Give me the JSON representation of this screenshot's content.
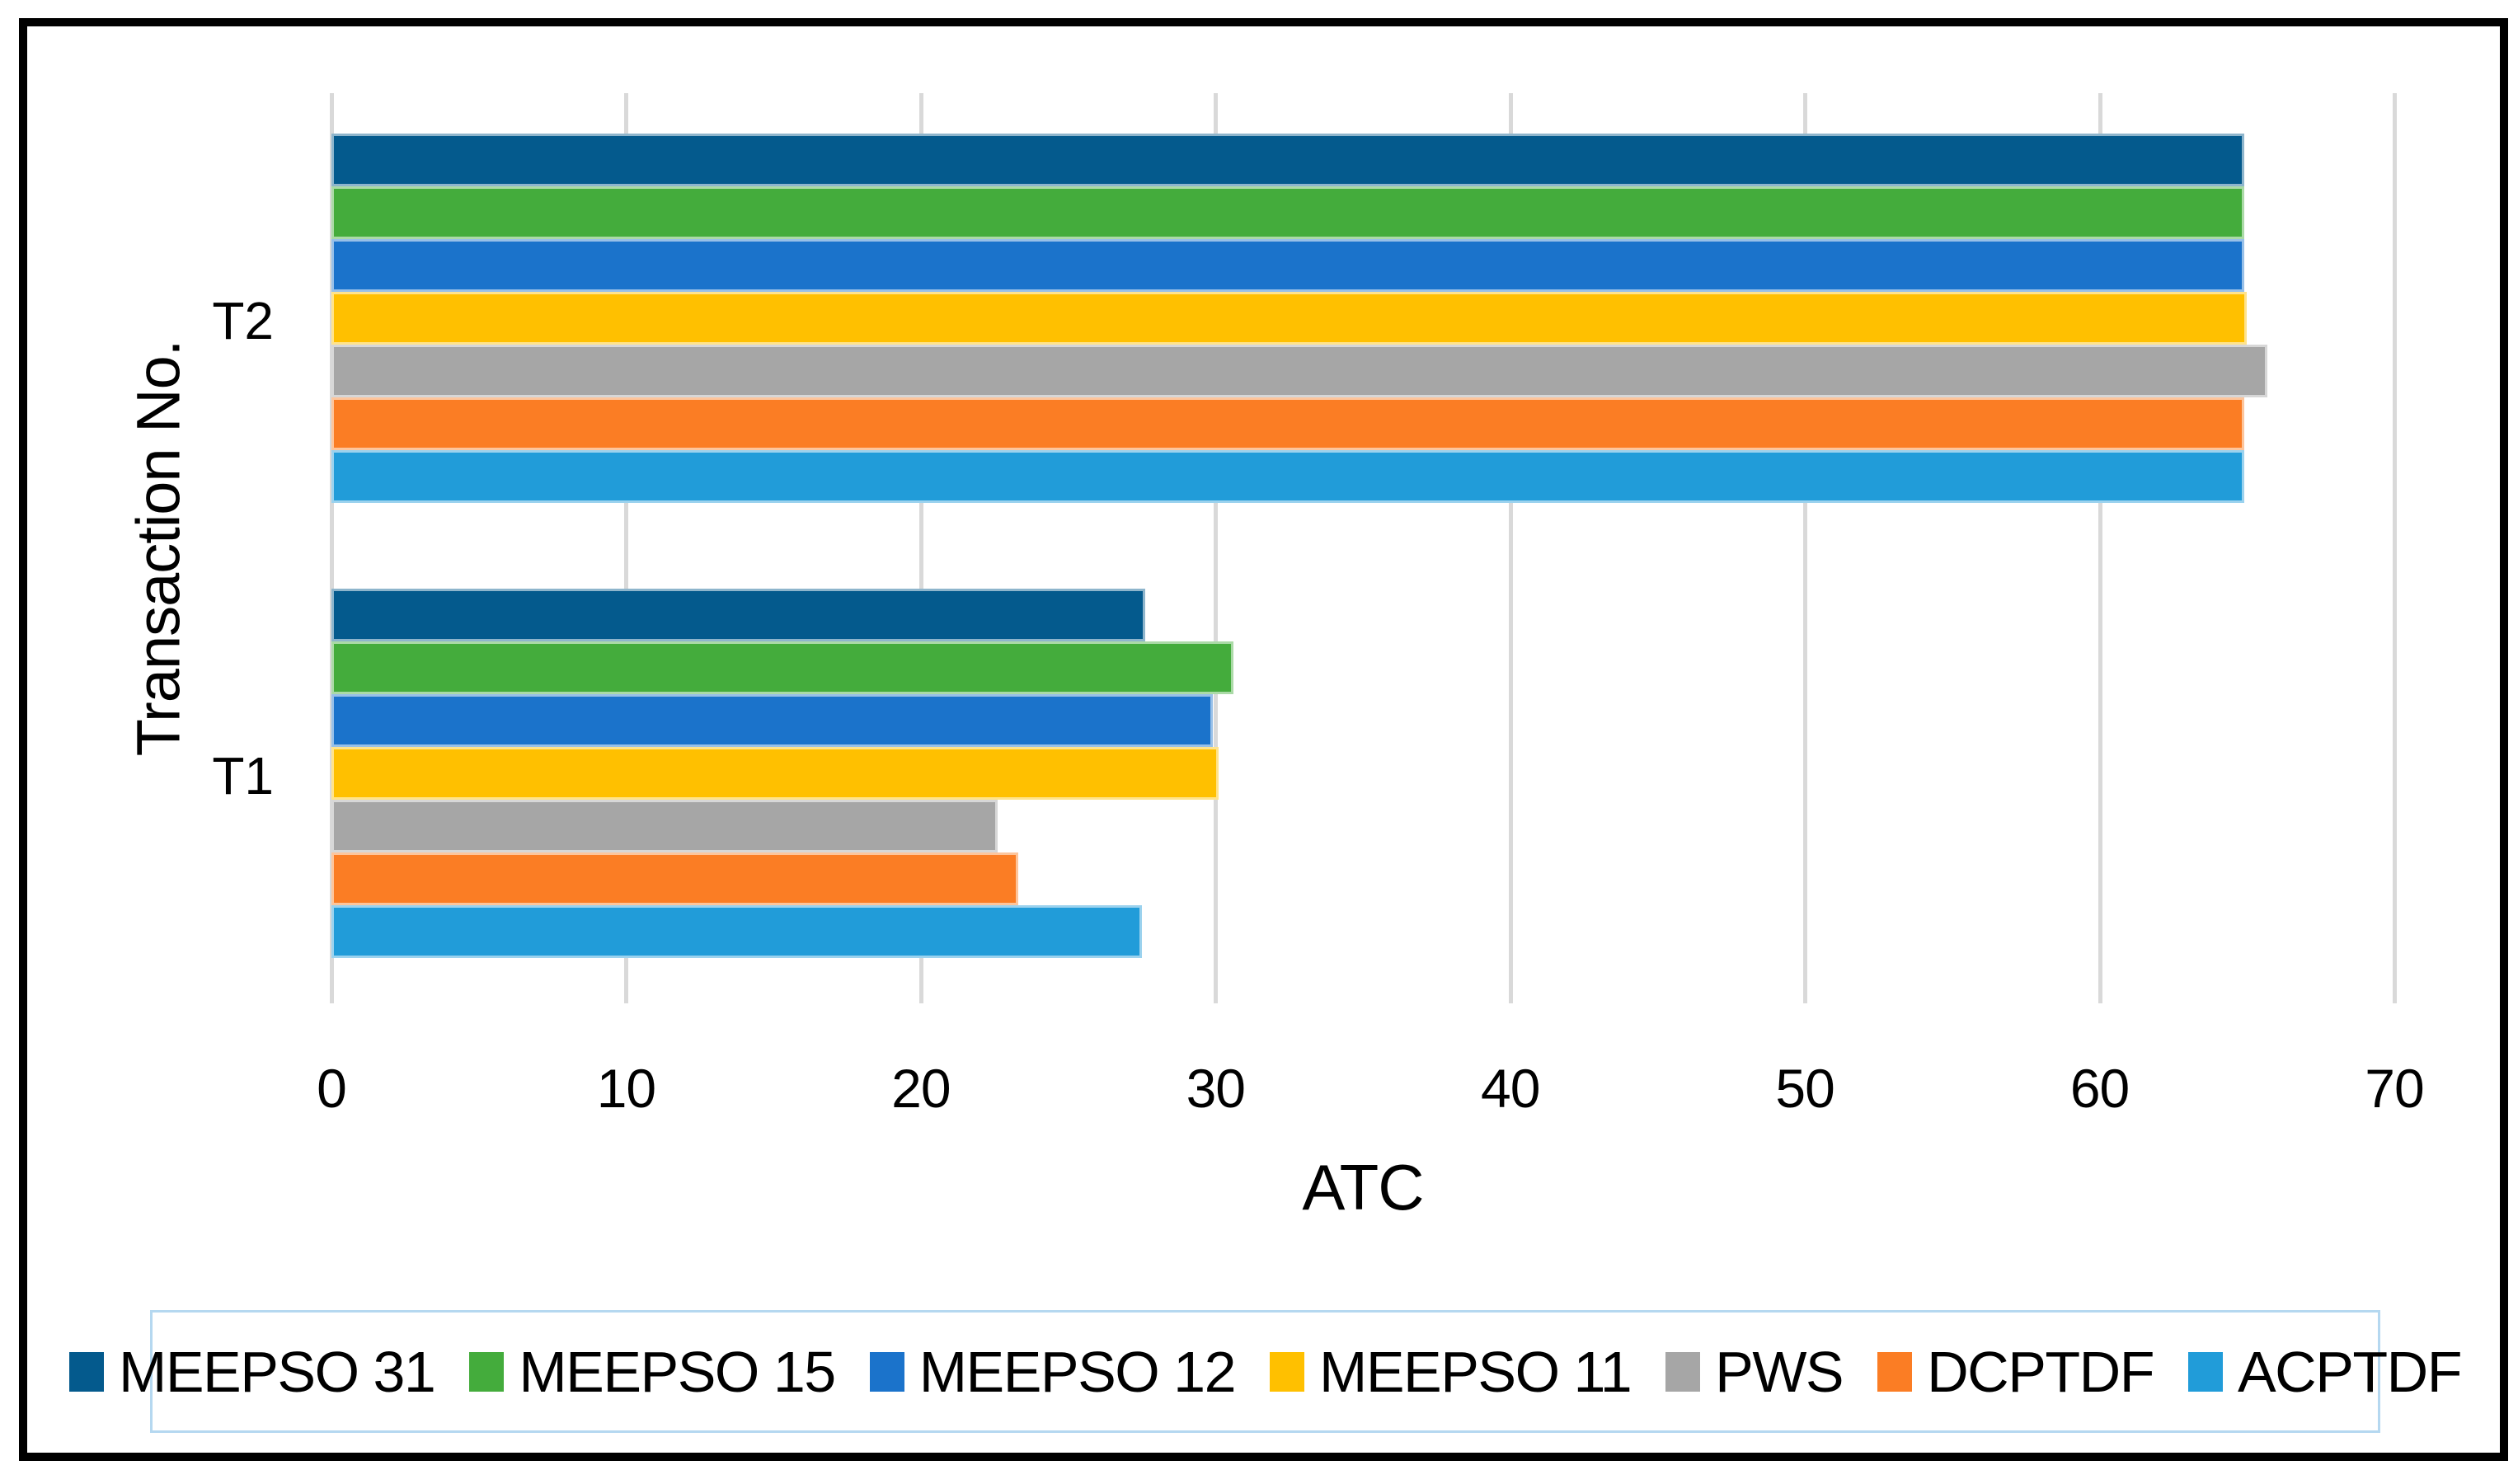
{
  "figure": {
    "background": "#ffffff",
    "frame_border_color": "#000000",
    "gridline_color": "#d9d9d9"
  },
  "chart_data": {
    "type": "bar",
    "orientation": "horizontal",
    "title": "",
    "xlabel": "ATC",
    "ylabel": "Transaction No.",
    "xlim": [
      0,
      70
    ],
    "xticks": [
      0,
      10,
      20,
      30,
      40,
      50,
      60,
      70
    ],
    "grid": true,
    "legend_position": "bottom",
    "legend_border_color": "#b5d8f0",
    "categories": [
      "T2",
      "T1"
    ],
    "series": [
      {
        "name": "MEEPSO 31",
        "color": "#045a8d",
        "values": [
          64.9,
          27.6
        ]
      },
      {
        "name": "MEEPSO 15",
        "color": "#44ac3c",
        "values": [
          64.9,
          30.6
        ]
      },
      {
        "name": "MEEPSO 12",
        "color": "#1b73cb",
        "values": [
          64.9,
          29.9
        ]
      },
      {
        "name": "MEEPSO 11",
        "color": "#ffc000",
        "values": [
          65.0,
          30.1
        ]
      },
      {
        "name": "PWS",
        "color": "#a6a6a6",
        "values": [
          65.7,
          22.6
        ]
      },
      {
        "name": "DCPTDF",
        "color": "#fb7d24",
        "values": [
          64.9,
          23.3
        ]
      },
      {
        "name": "ACPTDF",
        "color": "#219cd9",
        "values": [
          64.9,
          27.5
        ]
      }
    ]
  }
}
